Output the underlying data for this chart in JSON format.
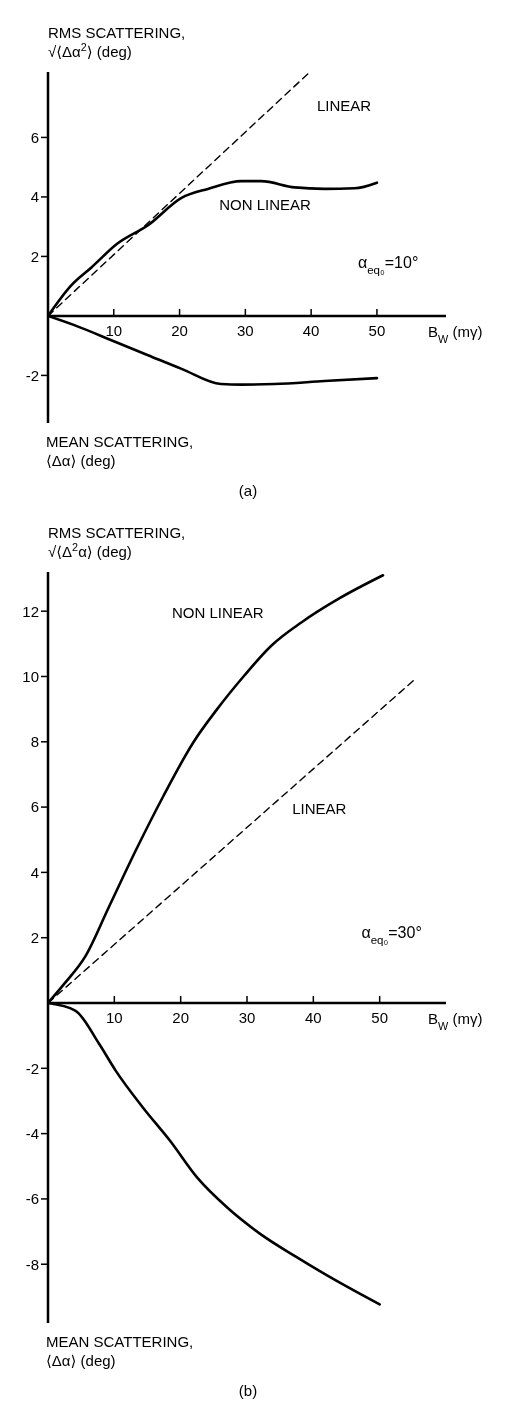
{
  "chart_data": [
    {
      "type": "line",
      "title": "(a)",
      "ylabel": "RMS SCATTERING,\n√⟨Δα$^{2}$⟩ (deg)",
      "xlabel": "B$_{W}$ (mγ)",
      "annotations": [
        "MEAN SCATTERING,\n⟨Δα⟩ (deg)",
        "α$_{eq₀}$=10°"
      ],
      "marker": "none",
      "xlim": [
        0,
        60.5
      ],
      "xticks": [
        10,
        20,
        30,
        40,
        50
      ],
      "ylim": [
        -3.6,
        8.2
      ],
      "yticks": [
        -2,
        2,
        4,
        6
      ],
      "series": [
        {
          "name": "NON LINEAR",
          "color": "#000000",
          "line_style": "solid",
          "x": [
            0,
            3.5,
            6.6,
            10.6,
            15.2,
            20.3,
            24.3,
            29.4,
            32.4,
            37.5,
            42,
            46.6,
            50
          ],
          "values": [
            0,
            1.02,
            1.63,
            2.44,
            3.05,
            3.97,
            4.27,
            4.53,
            4.53,
            4.32,
            4.27,
            4.29,
            4.48
          ]
        },
        {
          "name": "LINEAR",
          "color": "#000000",
          "line_style": "dashed",
          "x": [
            0,
            39.8
          ],
          "values": [
            0,
            8.2
          ]
        },
        {
          "color": "#000000",
          "line_style": "solid",
          "x": [
            0,
            4,
            10.1,
            15.2,
            20.3,
            26.3,
            29.4,
            34.4,
            42,
            50
          ],
          "values": [
            0,
            -0.31,
            -0.86,
            -1.32,
            -1.78,
            -2.29,
            -2.31,
            -2.29,
            -2.19,
            -2.09
          ]
        }
      ]
    },
    {
      "type": "line",
      "title": "(b)",
      "ylabel": "RMS SCATTERING,\n√⟨Δ$^{2}$α⟩ (deg)",
      "xlabel": "B$_{W}$ (mγ)",
      "annotations": [
        "MEAN SCATTERING,\n⟨Δα⟩ (deg)",
        "α$_{eq₀}$=30°"
      ],
      "marker": "none",
      "xlim": [
        0,
        60
      ],
      "xticks": [
        10,
        20,
        30,
        40,
        50
      ],
      "ylim": [
        -9.8,
        13.2
      ],
      "yticks": [
        -8,
        -6,
        -4,
        -2,
        2,
        4,
        6,
        8,
        10,
        12
      ],
      "series": [
        {
          "name": "NON LINEAR",
          "color": "#000000",
          "line_style": "solid",
          "x": [
            0,
            2.5,
            5.6,
            9.2,
            13.3,
            17.4,
            21.9,
            25.5,
            29.6,
            33.7,
            38.3,
            43.9,
            50.5
          ],
          "values": [
            0,
            0.6,
            1.42,
            2.95,
            4.7,
            6.34,
            7.98,
            9.0,
            10.03,
            10.95,
            11.67,
            12.39,
            13.1
          ]
        },
        {
          "name": "LINEAR",
          "color": "#000000",
          "line_style": "dashed",
          "x": [
            0,
            55.4
          ],
          "values": [
            0,
            9.93
          ]
        },
        {
          "color": "#000000",
          "line_style": "solid",
          "x": [
            0,
            4.1,
            7.7,
            10.2,
            14.3,
            18.4,
            22.5,
            27.1,
            32.2,
            37.3,
            42.4,
            50
          ],
          "values": [
            0,
            -0.23,
            -1.25,
            -2.07,
            -3.2,
            -4.22,
            -5.35,
            -6.28,
            -7.1,
            -7.76,
            -8.38,
            -9.23
          ]
        }
      ]
    }
  ]
}
